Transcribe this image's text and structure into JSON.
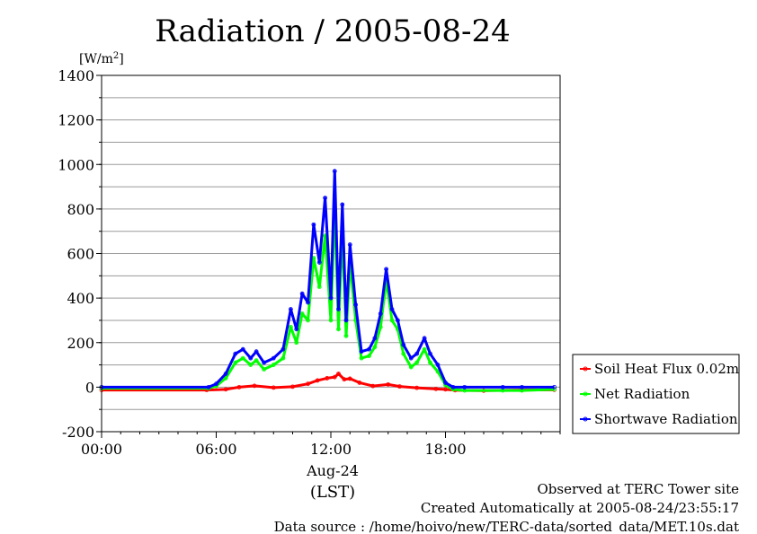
{
  "chart_data": {
    "type": "line",
    "title": "Radiation / 2005-08-24",
    "ylabel_unit_base": "[W/m",
    "ylabel_unit_sup": "2",
    "ylabel_unit_end": "]",
    "xlabel_date": "Aug-24",
    "xlabel_tz": "(LST)",
    "ylim": [
      -200,
      1400
    ],
    "yticks": [
      -200,
      0,
      200,
      400,
      600,
      800,
      1000,
      1200,
      1400
    ],
    "xlim": [
      0,
      24
    ],
    "xticks": [
      {
        "hour": 0,
        "label": "00:00"
      },
      {
        "hour": 6,
        "label": "06:00"
      },
      {
        "hour": 12,
        "label": "12:00"
      },
      {
        "hour": 18,
        "label": "18:00"
      }
    ],
    "grid": true,
    "legend_position": "bottom-right, outside plot",
    "series": [
      {
        "name": "Soil Heat Flux 0.02m",
        "color": "#ff0000",
        "x": [
          0,
          5.5,
          6.5,
          7.2,
          8,
          9,
          10,
          10.8,
          11.3,
          11.8,
          12.2,
          12.4,
          12.7,
          13,
          13.5,
          14.2,
          15,
          15.6,
          16.5,
          17.5,
          18,
          18.5,
          20,
          22,
          23.7
        ],
        "y": [
          -13,
          -13,
          -10,
          0,
          6,
          -2,
          2,
          15,
          30,
          40,
          45,
          60,
          35,
          38,
          20,
          5,
          12,
          3,
          -3,
          -8,
          -10,
          -14,
          -16,
          -13,
          -12
        ]
      },
      {
        "name": "Net Radiation",
        "color": "#00ff00",
        "x": [
          0,
          5.6,
          6,
          6.5,
          7,
          7.4,
          7.8,
          8.1,
          8.5,
          9,
          9.5,
          9.9,
          10.2,
          10.5,
          10.8,
          11.1,
          11.4,
          11.7,
          12,
          12.2,
          12.4,
          12.6,
          12.8,
          13,
          13.3,
          13.6,
          14,
          14.3,
          14.6,
          14.9,
          15.2,
          15.5,
          15.8,
          16.2,
          16.5,
          16.9,
          17.2,
          17.6,
          18,
          18.4,
          19,
          21,
          22,
          23.7
        ],
        "y": [
          -5,
          -5,
          5,
          40,
          110,
          130,
          100,
          120,
          80,
          100,
          130,
          270,
          200,
          330,
          300,
          580,
          450,
          680,
          300,
          830,
          260,
          700,
          230,
          560,
          300,
          130,
          140,
          180,
          270,
          480,
          300,
          260,
          150,
          90,
          110,
          170,
          110,
          70,
          10,
          -10,
          -15,
          -15,
          -15,
          -10
        ]
      },
      {
        "name": "Shortwave Radiation",
        "color": "#0000ff",
        "x": [
          0,
          5.6,
          6,
          6.5,
          7,
          7.4,
          7.8,
          8.1,
          8.5,
          9,
          9.5,
          9.9,
          10.2,
          10.5,
          10.8,
          11.1,
          11.4,
          11.7,
          12,
          12.2,
          12.4,
          12.6,
          12.8,
          13,
          13.3,
          13.6,
          14,
          14.3,
          14.6,
          14.9,
          15.2,
          15.5,
          15.8,
          16.2,
          16.5,
          16.9,
          17.2,
          17.6,
          18,
          18.4,
          19,
          21,
          22,
          23.7
        ],
        "y": [
          0,
          0,
          15,
          60,
          150,
          170,
          130,
          160,
          110,
          130,
          170,
          350,
          260,
          420,
          380,
          730,
          560,
          850,
          400,
          970,
          350,
          820,
          300,
          640,
          370,
          160,
          170,
          220,
          330,
          530,
          350,
          300,
          190,
          130,
          150,
          220,
          150,
          100,
          20,
          0,
          0,
          0,
          0,
          0
        ]
      }
    ]
  },
  "footer": {
    "line1": "Observed at TERC Tower site",
    "line2": "Created Automatically at 2005-08-24/23:55:17",
    "line3": "Data source : /home/hoivo/new/TERC-data/sorted_data/MET.10s.dat"
  }
}
